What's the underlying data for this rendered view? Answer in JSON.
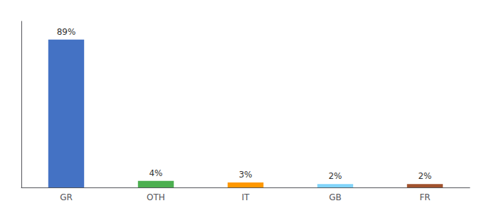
{
  "chart_data": {
    "type": "bar",
    "categories": [
      "GR",
      "OTH",
      "IT",
      "GB",
      "FR"
    ],
    "values": [
      89,
      4,
      3,
      2,
      2
    ],
    "value_labels": [
      "89%",
      "4%",
      "3%",
      "2%",
      "2%"
    ],
    "colors": [
      "#4472c4",
      "#4caf50",
      "#ff9800",
      "#81d4fa",
      "#a0522d"
    ],
    "ylim": [
      0,
      100
    ],
    "data_labels": true,
    "tick_labels": "x",
    "grid": false
  }
}
